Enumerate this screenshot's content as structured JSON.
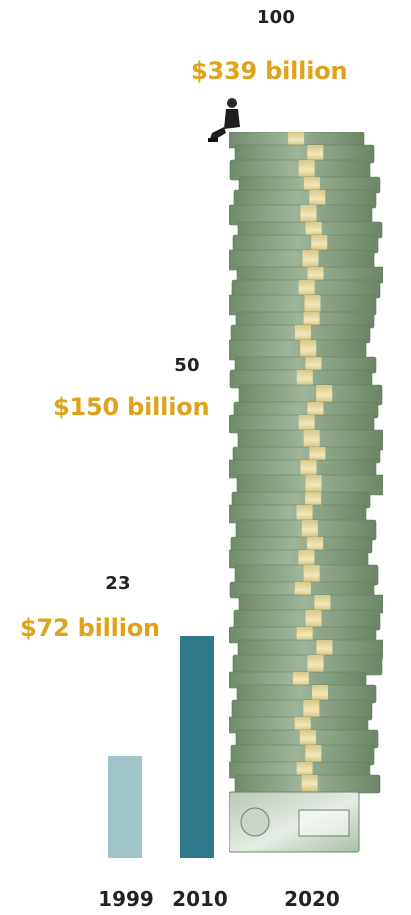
{
  "chart_data": {
    "type": "bar",
    "categories": [
      "1999",
      "2010",
      "2020"
    ],
    "values": [
      23,
      50,
      100
    ],
    "value_labels": [
      "23",
      "50",
      "100"
    ],
    "amount_labels": [
      "$72 billion",
      "$150 billion",
      "$339 billion"
    ],
    "ylim": [
      0,
      100
    ],
    "grid": false,
    "title": "",
    "xlabel": "",
    "ylabel": "",
    "colors": {
      "bar_1999": "#9fc5c8",
      "bar_2010": "#2f7a8a",
      "money_label": "#e0a21a",
      "number_label": "#222222",
      "cash_stack": "#7f9a78"
    }
  },
  "icons": {
    "cash_stack": "cash-stack-illustration",
    "person": "seated-person-illustration"
  }
}
